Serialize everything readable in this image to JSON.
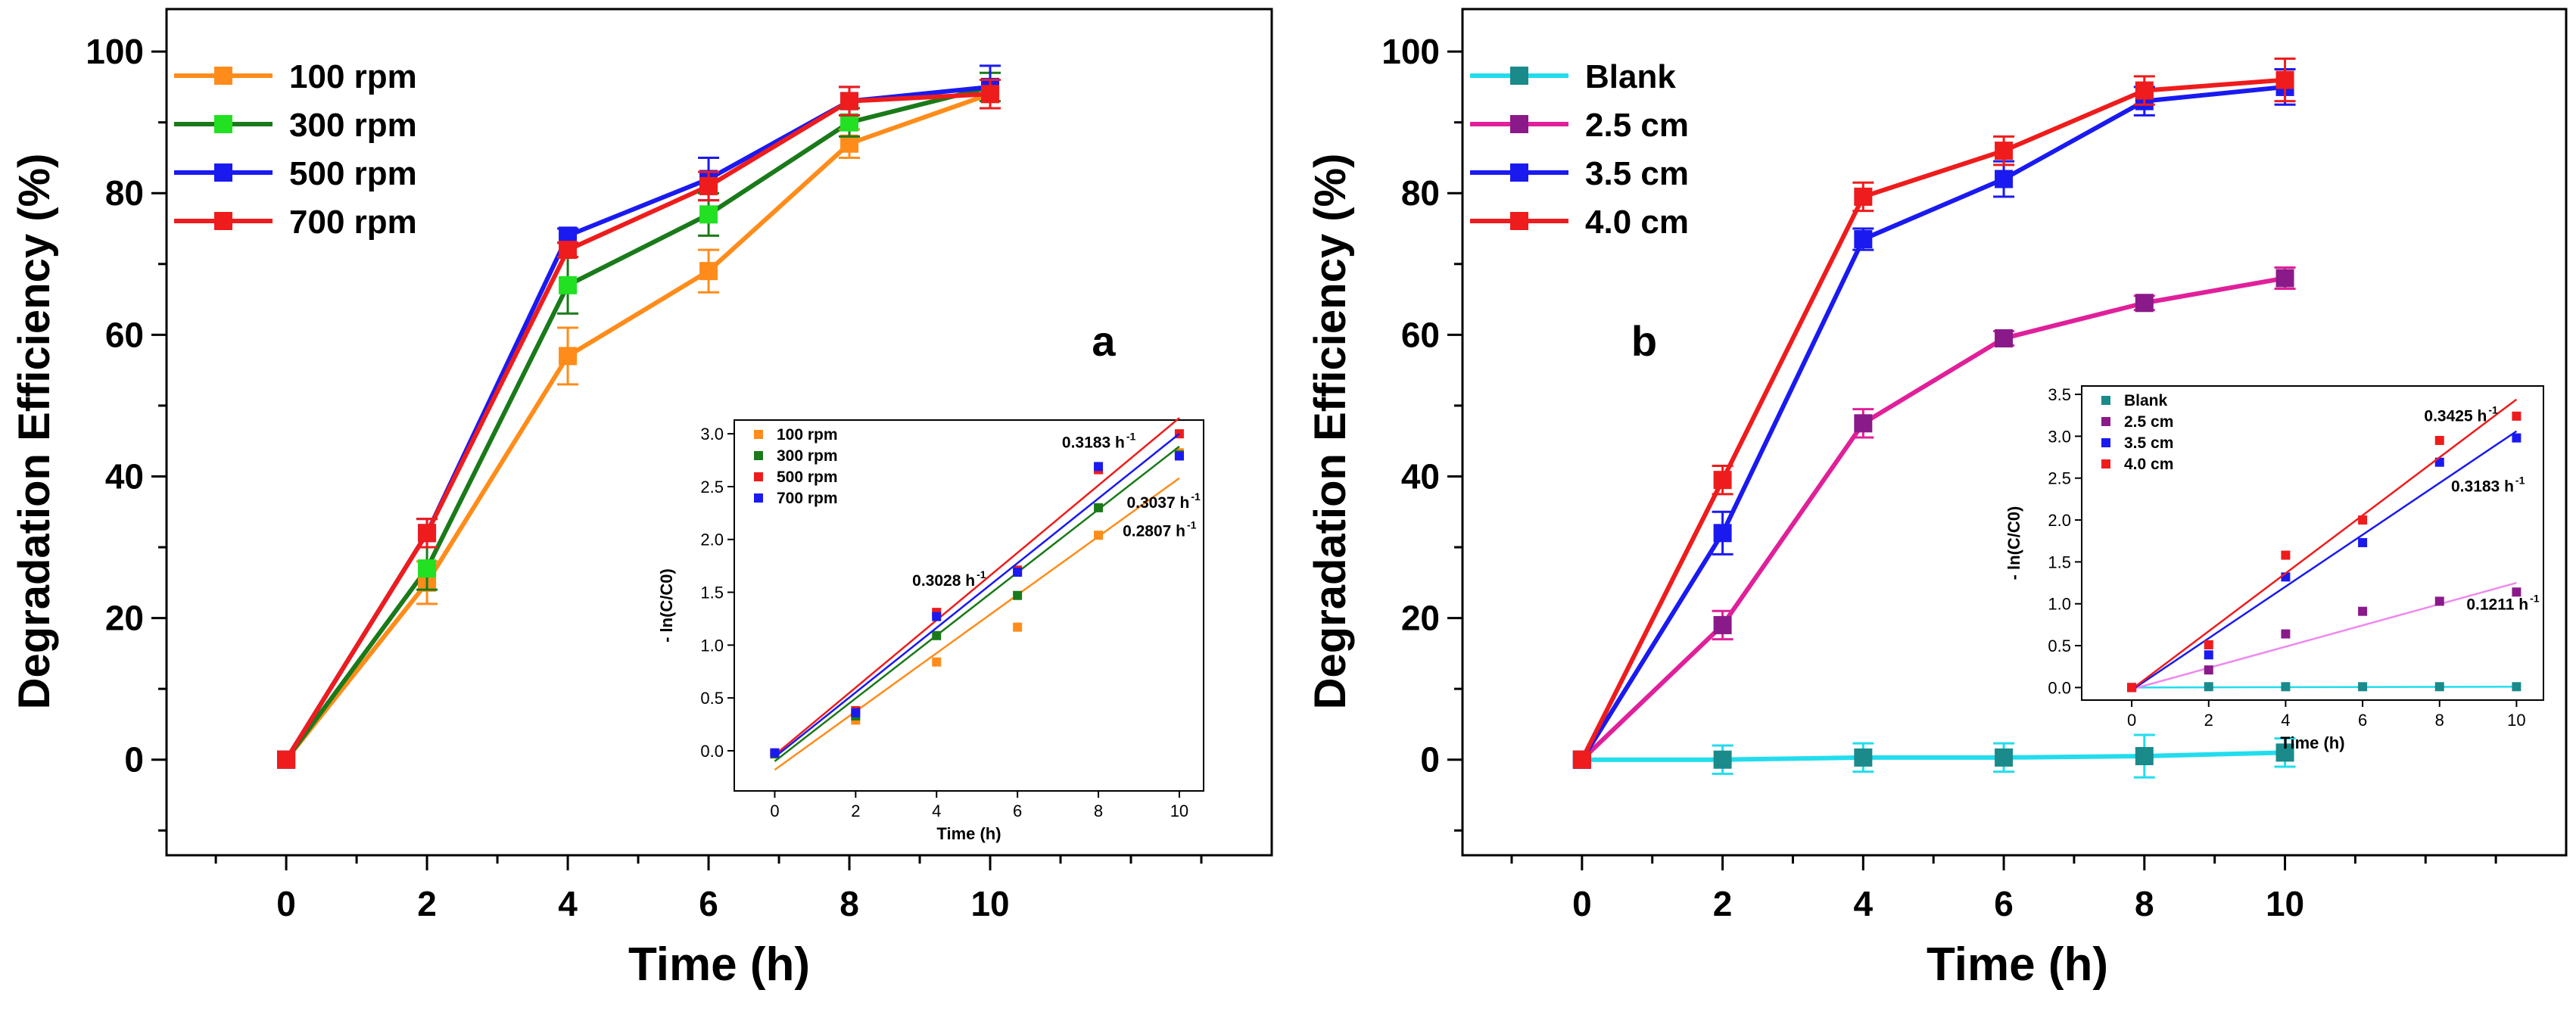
{
  "chart_data": [
    {
      "panel": "a",
      "type": "line",
      "xlabel": "Time (h)",
      "ylabel": "Degradation Efficiency (%)",
      "xlim": [
        -1.7,
        14
      ],
      "ylim": [
        -13.5,
        106
      ],
      "xticks": [
        0,
        2,
        4,
        6,
        8,
        10
      ],
      "yticks": [
        0,
        20,
        40,
        60,
        80,
        100
      ],
      "x": [
        0,
        2,
        4,
        6,
        8,
        10
      ],
      "series": [
        {
          "name": "100 rpm",
          "color": "#ff8c1a",
          "values": [
            0,
            25,
            57,
            69,
            87,
            94
          ],
          "errors": [
            0,
            3,
            4,
            3,
            2,
            2
          ]
        },
        {
          "name": "300 rpm",
          "color": "#1a7a1a",
          "marker_color": "#22e022",
          "values": [
            0,
            27,
            67,
            77,
            90,
            95
          ],
          "errors": [
            0,
            3,
            4,
            3,
            2,
            2
          ]
        },
        {
          "name": "500 rpm",
          "color": "#1a1af0",
          "values": [
            0,
            32,
            74,
            82,
            93,
            95
          ],
          "errors": [
            0,
            2,
            1,
            3,
            2,
            3
          ]
        },
        {
          "name": "700 rpm",
          "color": "#ee1c1c",
          "values": [
            0,
            32,
            72,
            81,
            93,
            94
          ],
          "errors": [
            0,
            2,
            1,
            2,
            2,
            2
          ]
        }
      ],
      "inset": {
        "xlabel": "Time (h)",
        "ylabel": "- ln(C/C0)",
        "xlim": [
          -1,
          10.6
        ],
        "ylim": [
          -0.38,
          3.13
        ],
        "xticks": [
          0,
          2,
          4,
          6,
          8,
          10
        ],
        "yticks": [
          0,
          0.5,
          1.0,
          1.5,
          2.0,
          2.5,
          3.0
        ],
        "ytick_labels": [
          "0.0",
          "0.5",
          "1.0",
          "1.5",
          "2.0",
          "2.5",
          "3.0"
        ],
        "x": [
          0,
          2,
          4,
          6,
          8,
          10
        ],
        "series": [
          {
            "name": "100 rpm",
            "color": "#ff8c1a",
            "points": [
              -0.03,
              0.29,
              0.84,
              1.17,
              2.04,
              2.82
            ],
            "fit": [
              -0.18,
              2.58
            ]
          },
          {
            "name": "300 rpm",
            "color": "#1a7a1a",
            "points": [
              -0.03,
              0.33,
              1.09,
              1.47,
              2.3,
              2.8
            ],
            "fit": [
              -0.1,
              2.88
            ]
          },
          {
            "name": "500 rpm",
            "color": "#ee1c1c",
            "points": [
              -0.02,
              0.38,
              1.31,
              1.71,
              2.66,
              3.0
            ],
            "fit": [
              -0.04,
              3.15
            ]
          },
          {
            "name": "700 rpm",
            "color": "#1a1af0",
            "points": [
              -0.02,
              0.36,
              1.27,
              1.69,
              2.69,
              2.79
            ],
            "fit": [
              -0.06,
              3.0
            ]
          }
        ],
        "annotations": [
          {
            "text": "0.3183 h",
            "x": 7.1,
            "y": 2.87
          },
          {
            "text": "0.3037 h",
            "x": 8.7,
            "y": 2.3
          },
          {
            "text": "0.2807 h",
            "x": 8.6,
            "y": 2.03
          },
          {
            "text": "0.3028 h",
            "x": 3.4,
            "y": 1.56
          }
        ]
      }
    },
    {
      "panel": "b",
      "type": "line",
      "xlabel": "Time (h)",
      "ylabel": "Degradation Efficiency (%)",
      "xlim": [
        -1.7,
        14
      ],
      "ylim": [
        -13.5,
        106
      ],
      "xticks": [
        0,
        2,
        4,
        6,
        8,
        10
      ],
      "yticks": [
        0,
        20,
        40,
        60,
        80,
        100
      ],
      "x": [
        0,
        2,
        4,
        6,
        8,
        10
      ],
      "series": [
        {
          "name": "Blank",
          "color": "#22ddee",
          "marker_color": "#1a8a8a",
          "values": [
            0,
            0,
            0.3,
            0.3,
            0.5,
            1
          ],
          "errors": [
            0,
            2,
            2,
            2,
            3,
            2
          ]
        },
        {
          "name": "2.5 cm",
          "color": "#e0209a",
          "marker_color": "#8a1a8a",
          "values": [
            0,
            19,
            47.5,
            59.5,
            64.5,
            68
          ],
          "errors": [
            0,
            2,
            2,
            1,
            1,
            1.5
          ]
        },
        {
          "name": "3.5 cm",
          "color": "#1a1af0",
          "values": [
            0,
            32,
            73.5,
            82,
            93,
            95
          ],
          "errors": [
            0,
            3,
            1.5,
            2.5,
            2,
            2.5
          ]
        },
        {
          "name": "4.0 cm",
          "color": "#ee1c1c",
          "values": [
            0,
            39.5,
            79.5,
            86,
            94.5,
            96
          ],
          "errors": [
            0,
            2,
            2,
            2,
            2,
            3
          ]
        }
      ],
      "inset": {
        "xlabel": "Time (h)",
        "ylabel": "- ln(C/C0)",
        "xlim": [
          -1.3,
          10.7
        ],
        "ylim": [
          -0.15,
          3.6
        ],
        "xticks": [
          0,
          2,
          4,
          6,
          8,
          10
        ],
        "yticks": [
          0,
          0.5,
          1.0,
          1.5,
          2.0,
          2.5,
          3.0,
          3.5
        ],
        "ytick_labels": [
          "0.0",
          "0.5",
          "1.0",
          "1.5",
          "2.0",
          "2.5",
          "3.0",
          "3.5"
        ],
        "x": [
          0,
          2,
          4,
          6,
          8,
          10
        ],
        "series": [
          {
            "name": "Blank",
            "color": "#1a8a8a",
            "line_color": "#22ddee",
            "points": [
              0,
              0.01,
              0.01,
              0.01,
              0.01,
              0.01
            ],
            "fit": [
              0.0,
              0.01
            ]
          },
          {
            "name": "2.5 cm",
            "color": "#8a1a8a",
            "line_color": "#ee88ee",
            "points": [
              0,
              0.21,
              0.64,
              0.91,
              1.03,
              1.14
            ],
            "fit": [
              -0.02,
              1.25
            ]
          },
          {
            "name": "3.5 cm",
            "color": "#1a1af0",
            "points": [
              0,
              0.39,
              1.32,
              1.73,
              2.69,
              2.98
            ],
            "fit": [
              -0.03,
              3.06
            ]
          },
          {
            "name": "4.0 cm",
            "color": "#ee1c1c",
            "points": [
              0,
              0.51,
              1.58,
              2.0,
              2.95,
              3.24
            ],
            "fit": [
              -0.02,
              3.44
            ]
          }
        ],
        "annotations": [
          {
            "text": "0.3425 h",
            "x": 7.6,
            "y": 3.18
          },
          {
            "text": "0.3183 h",
            "x": 8.3,
            "y": 2.34
          },
          {
            "text": "0.1211 h",
            "x": 8.7,
            "y": 0.93
          }
        ]
      },
      "panel_label": "b"
    }
  ],
  "panel_labels": [
    "a",
    "b"
  ]
}
